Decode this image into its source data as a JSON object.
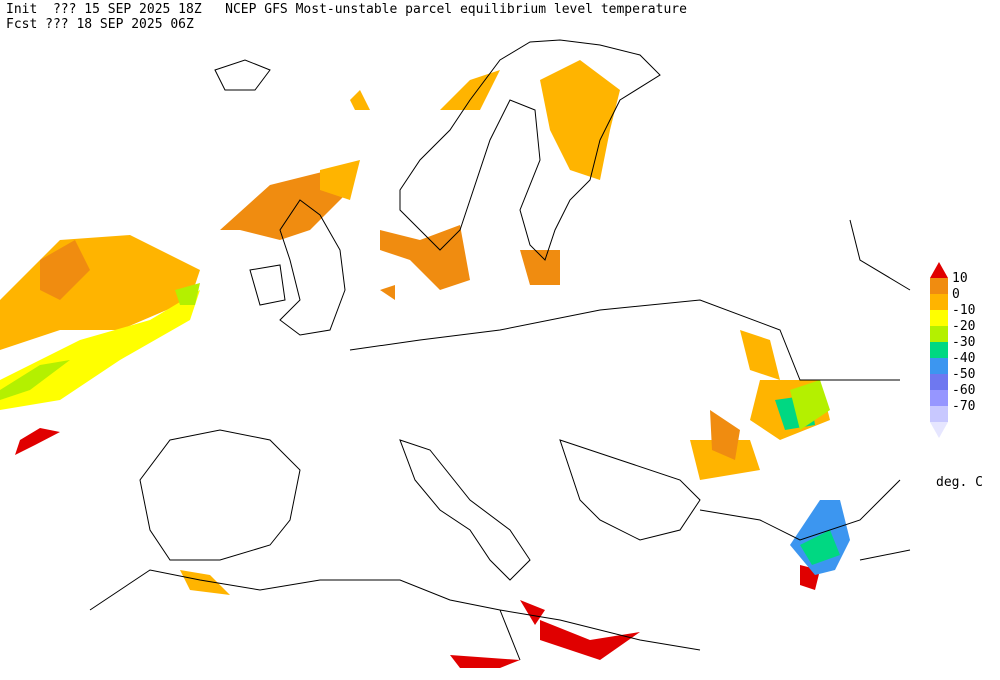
{
  "header": {
    "line1": "Init  ??? 15 SEP 2025 18Z   NCEP GFS Most-unstable parcel equilibrium level temperature",
    "line2": "Fcst ??? 18 SEP 2025 06Z"
  },
  "legend": {
    "labels": [
      "10",
      "0",
      "-10",
      "-20",
      "-30",
      "-40",
      "-50",
      "-60",
      "-70"
    ],
    "colors": [
      "#e00000",
      "#f08c10",
      "#ffb400",
      "#ffff00",
      "#b4f000",
      "#00d882",
      "#3c96f0",
      "#6e78f0",
      "#9696ff",
      "#c8c8ff",
      "#e6e6ff"
    ],
    "unit": "deg. C"
  }
}
